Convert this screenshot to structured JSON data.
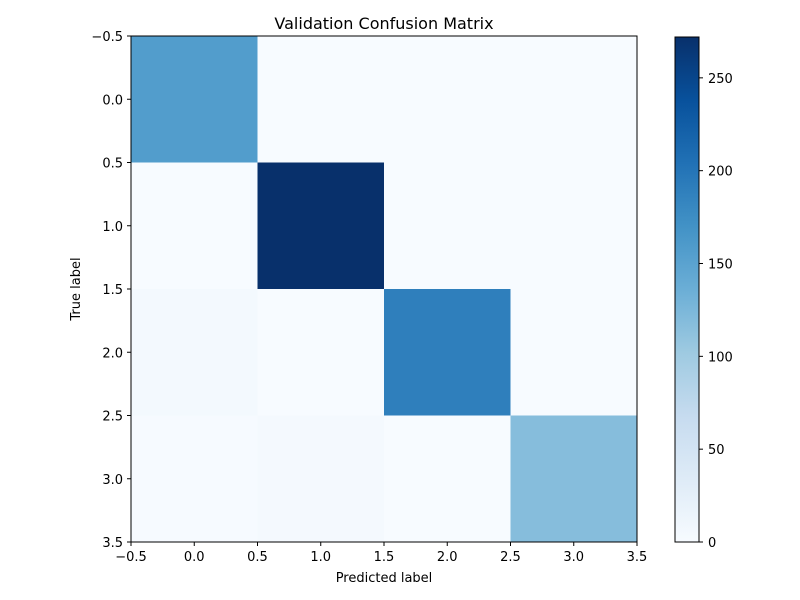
{
  "chart_data": {
    "type": "heatmap",
    "title": "Validation Confusion Matrix",
    "xlabel": "Predicted label",
    "ylabel": "True label",
    "xlim": [
      -0.5,
      3.5
    ],
    "ylim": [
      3.5,
      -0.5
    ],
    "x_tick_labels": [
      "−0.5",
      "0.0",
      "0.5",
      "1.0",
      "1.5",
      "2.0",
      "2.5",
      "3.0",
      "3.5"
    ],
    "y_tick_labels": [
      "−0.5",
      "0.0",
      "0.5",
      "1.0",
      "1.5",
      "2.0",
      "2.5",
      "3.0",
      "3.5"
    ],
    "x_ticks": [
      -0.5,
      0.0,
      0.5,
      1.0,
      1.5,
      2.0,
      2.5,
      3.0,
      3.5
    ],
    "y_ticks": [
      -0.5,
      0.0,
      0.5,
      1.0,
      1.5,
      2.0,
      2.5,
      3.0,
      3.5
    ],
    "matrix": [
      [
        157,
        0,
        0,
        0
      ],
      [
        0,
        272,
        0,
        0
      ],
      [
        5,
        0,
        190,
        0
      ],
      [
        2,
        4,
        0,
        118
      ]
    ],
    "colormap": "Blues",
    "colorbar": {
      "min": 0,
      "max": 272,
      "ticks": [
        0,
        50,
        100,
        150,
        200,
        250
      ],
      "tick_labels": [
        "0",
        "50",
        "100",
        "150",
        "200",
        "250"
      ]
    },
    "grid": false,
    "legend": "none"
  }
}
